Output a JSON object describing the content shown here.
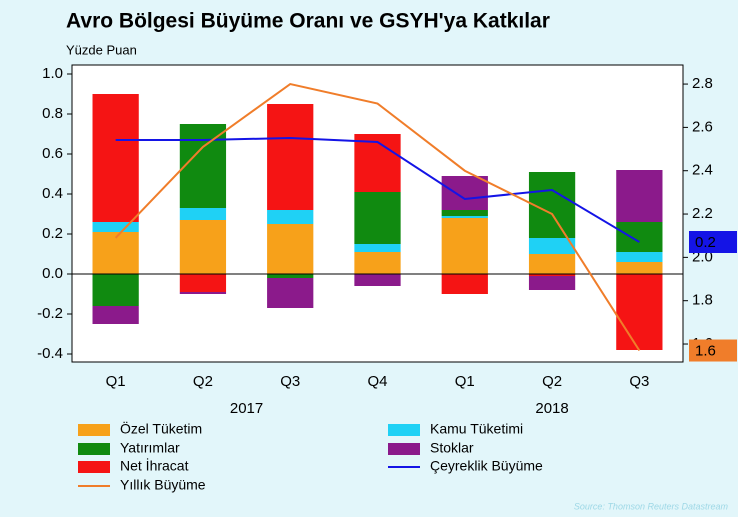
{
  "chart_data": {
    "type": "bar",
    "title": "Avro Bölgesi Büyüme Oranı ve GSYH'ya Katkılar",
    "subtitle": "Yüzde Puan",
    "source": "Source: Thomson Reuters Datastream",
    "categories": [
      "Q1",
      "Q2",
      "Q3",
      "Q4",
      "Q1",
      "Q2",
      "Q3"
    ],
    "year_labels": [
      "2017",
      "2018"
    ],
    "stacked": true,
    "series": [
      {
        "name": "Özel Tüketim",
        "color": "#f7a11a",
        "values": [
          0.21,
          0.27,
          0.25,
          0.11,
          0.28,
          0.1,
          0.06
        ]
      },
      {
        "name": "Kamu Tüketimi",
        "color": "#1fd1f5",
        "values": [
          0.05,
          0.06,
          0.07,
          0.04,
          0.01,
          0.08,
          0.05
        ]
      },
      {
        "name": "Yatırımlar",
        "color": "#108a10",
        "values": [
          -0.16,
          0.42,
          -0.02,
          0.26,
          0.03,
          0.33,
          0.15
        ]
      },
      {
        "name": "Net İhracat",
        "color": "#f51414",
        "values": [
          0.64,
          -0.09,
          0.53,
          0.29,
          -0.1,
          -0.01,
          -0.38
        ]
      },
      {
        "name": "Stoklar",
        "color": "#8b1a8b",
        "values": [
          -0.09,
          -0.01,
          -0.15,
          -0.06,
          0.17,
          -0.07,
          0.26
        ]
      },
      {
        "name": "Çeyreklik Büyüme",
        "type": "line",
        "color": "#1414e6",
        "values": [
          0.67,
          0.67,
          0.68,
          0.66,
          0.375,
          0.42,
          0.16
        ]
      },
      {
        "name": "Yıllık Büyüme",
        "type": "line",
        "axis": "y2",
        "color": "#f07d2a",
        "values": [
          2.09,
          2.51,
          2.8,
          2.71,
          2.4,
          2.2,
          1.57
        ]
      }
    ],
    "annotations": [
      {
        "text": "0.2",
        "series": 5
      },
      {
        "text": "1.6",
        "series": 6
      }
    ],
    "ylim": [
      -0.44,
      1.045
    ],
    "yticks": [
      -0.4,
      -0.2,
      {
        "value": 0,
        "label": "0.0"
      },
      0.2,
      0.4,
      0.6,
      0.8,
      {
        "value": 1,
        "label": "1.0"
      }
    ],
    "y2lim": [
      1.517,
      2.888
    ],
    "y2ticks": [
      1.6,
      1.8,
      {
        "value": 2,
        "label": "2.0"
      },
      2.2,
      2.4,
      2.6,
      2.8
    ]
  }
}
